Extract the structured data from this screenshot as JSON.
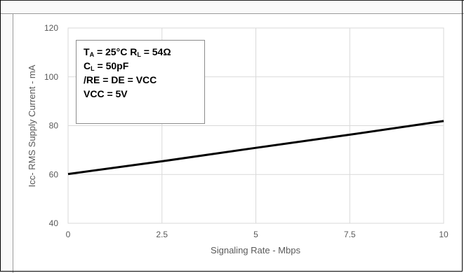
{
  "chart_data": {
    "type": "line",
    "xlabel": "Signaling Rate - Mbps",
    "ylabel": "Icc- RMS Supply Current - mA",
    "xlim": [
      0,
      10
    ],
    "ylim": [
      40,
      120
    ],
    "x_ticks": [
      0,
      2.5,
      5,
      7.5,
      10
    ],
    "x_tick_labels": [
      "0",
      "2.5",
      "5",
      "7.5",
      "10"
    ],
    "y_ticks": [
      40,
      60,
      80,
      100,
      120
    ],
    "y_tick_labels": [
      "40",
      "60",
      "80",
      "100",
      "120"
    ],
    "grid": true,
    "series": [
      {
        "x": [
          0,
          2.5,
          5,
          7.5,
          10
        ],
        "y": [
          60.2,
          65.4,
          70.9,
          76.3,
          81.9
        ],
        "color": "#000000"
      }
    ],
    "annotation": {
      "line1": {
        "t": "T",
        "t_sub": "A",
        "mid": " = 25°C  R",
        "r_sub": "L",
        "end": " = 54Ω"
      },
      "line2": {
        "c": "C",
        "c_sub": "L",
        "end": " = 50pF"
      },
      "line3": "/RE = DE = VCC",
      "line4": "VCC = 5V"
    }
  }
}
